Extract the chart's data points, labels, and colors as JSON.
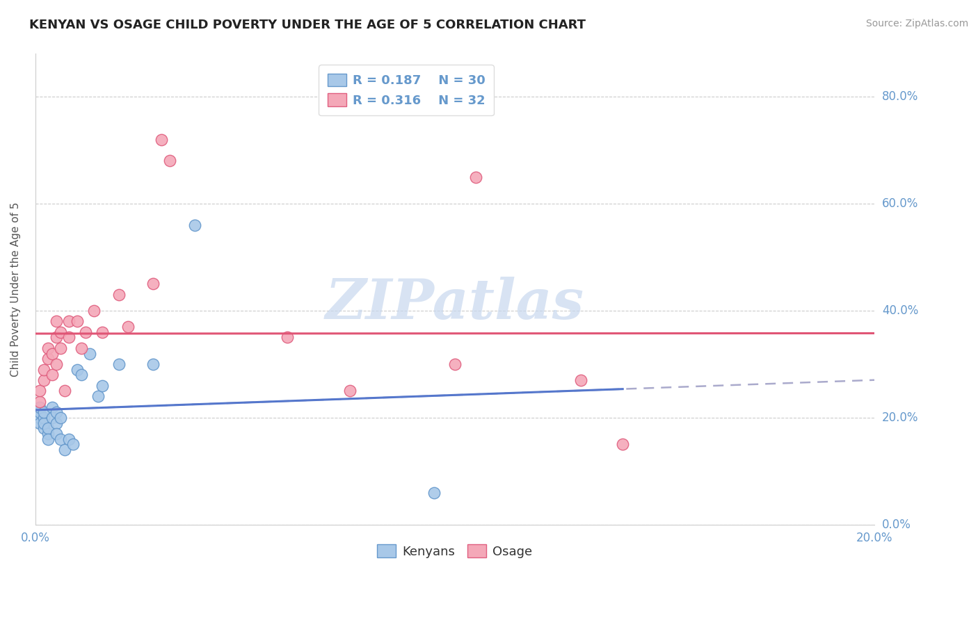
{
  "title": "KENYAN VS OSAGE CHILD POVERTY UNDER THE AGE OF 5 CORRELATION CHART",
  "source": "Source: ZipAtlas.com",
  "ylabel": "Child Poverty Under the Age of 5",
  "xlim": [
    0.0,
    0.2
  ],
  "ylim": [
    0.0,
    0.88
  ],
  "ytick_values": [
    0.0,
    0.2,
    0.4,
    0.6,
    0.8
  ],
  "xtick_values": [
    0.0,
    0.2
  ],
  "kenyan_color": "#a8c8e8",
  "kenyan_edge_color": "#6699cc",
  "osage_color": "#f4a8b8",
  "osage_edge_color": "#e06080",
  "kenyan_line_color": "#5577cc",
  "osage_line_color": "#e05575",
  "dashed_line_color": "#aaaacc",
  "legend_R_kenyan": "R = 0.187",
  "legend_N_kenyan": "N = 30",
  "legend_R_osage": "R = 0.316",
  "legend_N_osage": "N = 32",
  "kenyan_x": [
    0.001,
    0.001,
    0.001,
    0.001,
    0.002,
    0.002,
    0.002,
    0.002,
    0.003,
    0.003,
    0.003,
    0.004,
    0.004,
    0.005,
    0.005,
    0.005,
    0.006,
    0.006,
    0.007,
    0.008,
    0.009,
    0.01,
    0.011,
    0.013,
    0.015,
    0.016,
    0.02,
    0.028,
    0.038,
    0.095
  ],
  "kenyan_y": [
    0.2,
    0.19,
    0.21,
    0.22,
    0.18,
    0.2,
    0.19,
    0.21,
    0.17,
    0.18,
    0.16,
    0.22,
    0.2,
    0.19,
    0.21,
    0.17,
    0.16,
    0.2,
    0.14,
    0.16,
    0.15,
    0.29,
    0.28,
    0.32,
    0.24,
    0.26,
    0.3,
    0.3,
    0.56,
    0.06
  ],
  "osage_x": [
    0.001,
    0.001,
    0.002,
    0.002,
    0.003,
    0.003,
    0.004,
    0.004,
    0.005,
    0.005,
    0.005,
    0.006,
    0.006,
    0.007,
    0.008,
    0.008,
    0.01,
    0.011,
    0.012,
    0.014,
    0.016,
    0.02,
    0.022,
    0.028,
    0.03,
    0.032,
    0.06,
    0.075,
    0.1,
    0.105,
    0.13,
    0.14
  ],
  "osage_y": [
    0.23,
    0.25,
    0.27,
    0.29,
    0.31,
    0.33,
    0.28,
    0.32,
    0.3,
    0.35,
    0.38,
    0.33,
    0.36,
    0.25,
    0.38,
    0.35,
    0.38,
    0.33,
    0.36,
    0.4,
    0.36,
    0.43,
    0.37,
    0.45,
    0.72,
    0.68,
    0.35,
    0.25,
    0.3,
    0.65,
    0.27,
    0.15
  ],
  "background_color": "#ffffff",
  "grid_color": "#cccccc",
  "watermark_text": "ZIPatlas",
  "title_fontsize": 13,
  "source_fontsize": 10,
  "axis_label_fontsize": 11,
  "tick_fontsize": 12,
  "legend_fontsize": 13,
  "tick_color": "#6699cc",
  "title_color": "#222222",
  "source_color": "#999999",
  "ylabel_color": "#555555"
}
